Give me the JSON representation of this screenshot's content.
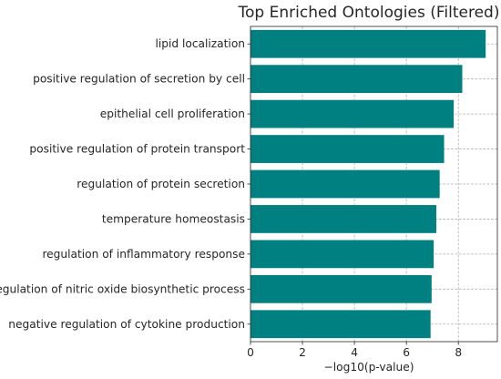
{
  "chart_data": {
    "type": "bar",
    "orientation": "horizontal",
    "title": "Top Enriched Ontologies (Filtered)",
    "xlabel": "−log10(p-value)",
    "ylabel": "",
    "categories": [
      "lipid localization",
      "positive regulation of secretion by cell",
      "epithelial cell proliferation",
      "positive regulation of protein transport",
      "regulation of protein secretion",
      "temperature homeostasis",
      "regulation of inflammatory response",
      "regulation of nitric oxide biosynthetic process",
      "negative regulation of cytokine production"
    ],
    "values": [
      9.05,
      8.15,
      7.82,
      7.45,
      7.28,
      7.15,
      7.05,
      6.97,
      6.93
    ],
    "xlim": [
      0,
      9.5
    ],
    "xticks": [
      0,
      2,
      4,
      6,
      8
    ],
    "grid": true,
    "bar_color": "#008080"
  }
}
